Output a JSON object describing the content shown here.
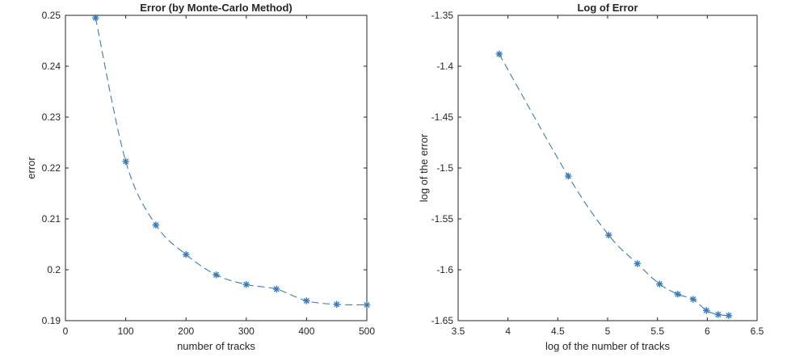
{
  "colors": {
    "series": "#3a7bb8",
    "axes": "#262626"
  },
  "chart_data": [
    {
      "type": "line",
      "title": "Error (by Monte-Carlo Method)",
      "xlabel": "number of tracks",
      "ylabel": "error",
      "xlim": [
        0,
        500
      ],
      "ylim": [
        0.19,
        0.25
      ],
      "xticks": [
        0,
        100,
        200,
        300,
        400,
        500
      ],
      "xtick_labels": [
        "0",
        "100",
        "200",
        "300",
        "400",
        "500"
      ],
      "yticks": [
        0.19,
        0.2,
        0.21,
        0.22,
        0.23,
        0.24,
        0.25
      ],
      "ytick_labels": [
        "0.19",
        "0.2",
        "0.21",
        "0.22",
        "0.23",
        "0.24",
        "0.25"
      ],
      "grid": false,
      "marker": "asterisk",
      "line_style": "dashed",
      "series": [
        {
          "x": [
            50,
            100,
            150,
            200,
            250,
            300,
            350,
            400,
            450,
            500
          ],
          "y": [
            0.2495,
            0.2213,
            0.2088,
            0.203,
            0.199,
            0.1971,
            0.1962,
            0.1939,
            0.1932,
            0.1931
          ]
        }
      ]
    },
    {
      "type": "line",
      "title": "Log of Error",
      "xlabel": "log of the number of tracks",
      "ylabel": "log of the error",
      "xlim": [
        3.5,
        6.5
      ],
      "ylim": [
        -1.65,
        -1.35
      ],
      "xticks": [
        3.5,
        4,
        4.5,
        5,
        5.5,
        6,
        6.5
      ],
      "xtick_labels": [
        "3.5",
        "4",
        "4.5",
        "5",
        "5.5",
        "6",
        "6.5"
      ],
      "yticks": [
        -1.65,
        -1.6,
        -1.55,
        -1.5,
        -1.45,
        -1.4,
        -1.35
      ],
      "ytick_labels": [
        "-1.65",
        "-1.6",
        "-1.55",
        "-1.5",
        "-1.45",
        "-1.4",
        "-1.35"
      ],
      "grid": false,
      "marker": "asterisk",
      "line_style": "dashed",
      "series": [
        {
          "x": [
            3.912,
            4.605,
            5.011,
            5.298,
            5.521,
            5.704,
            5.858,
            5.991,
            6.109,
            6.215
          ],
          "y": [
            -1.388,
            -1.508,
            -1.566,
            -1.594,
            -1.614,
            -1.624,
            -1.629,
            -1.64,
            -1.644,
            -1.645
          ]
        }
      ]
    }
  ]
}
